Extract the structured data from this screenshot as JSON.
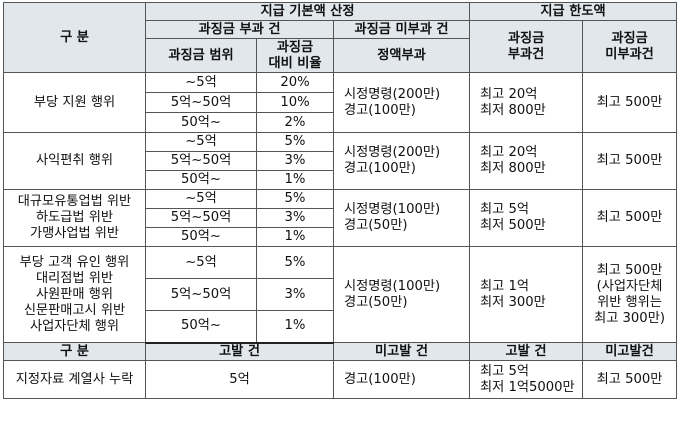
{
  "header": {
    "category": "구  분",
    "basic_amount": "지급 기본액 산정",
    "limit": "지급 한도액",
    "surcharge_applied": "과징금 부과 건",
    "surcharge_not_applied": "과징금 미부과 건",
    "surcharge_range": "과징금 범위",
    "surcharge_ratio": "과징금\n대비 비율",
    "fixed_amount": "정액부과",
    "limit_applied": "과징금\n부과건",
    "limit_not_applied": "과징금\n미부과건"
  },
  "groups": [
    {
      "category": "부당 지원 행위",
      "tiers": [
        {
          "range": "~5억",
          "ratio": "20%"
        },
        {
          "range": "5억~50억",
          "ratio": "10%"
        },
        {
          "range": "50억~",
          "ratio": "2%"
        }
      ],
      "fixed": "시정명령(200만)\n경고(100만)",
      "limit_applied": "최고 20억\n최저 800만",
      "limit_not_applied": "최고 500만"
    },
    {
      "category": "사익편취 행위",
      "tiers": [
        {
          "range": "~5억",
          "ratio": "5%"
        },
        {
          "range": "5억~50억",
          "ratio": "3%"
        },
        {
          "range": "50억~",
          "ratio": "1%"
        }
      ],
      "fixed": "시정명령(200만)\n경고(100만)",
      "limit_applied": "최고 20억\n최저 800만",
      "limit_not_applied": "최고 500만"
    },
    {
      "category": "대규모유통업법 위반\n하도급법 위반\n가맹사업법 위반",
      "tiers": [
        {
          "range": "~5억",
          "ratio": "5%"
        },
        {
          "range": "5억~50억",
          "ratio": "3%"
        },
        {
          "range": "50억~",
          "ratio": "1%"
        }
      ],
      "fixed": "시정명령(100만)\n경고(50만)",
      "limit_applied": "최고 5억\n최저 500만",
      "limit_not_applied": "최고 500만"
    },
    {
      "category": "부당 고객 유인 행위\n대리점법 위반\n사원판매 행위\n신문판매고시 위반\n사업자단체 행위",
      "tiers": [
        {
          "range": "~5억",
          "ratio": "5%"
        },
        {
          "range": "5억~50억",
          "ratio": "3%"
        },
        {
          "range": "50억~",
          "ratio": "1%"
        }
      ],
      "fixed": "시정명령(100만)\n경고(50만)",
      "limit_applied": "최고 1억\n최저 300만",
      "limit_not_applied": "최고 500만\n(사업자단체\n위반 행위는\n최고 300만)"
    }
  ],
  "footer_header": {
    "category": "구  분",
    "reported": "고발 건",
    "not_reported": "미고발 건",
    "limit_reported": "고발 건",
    "limit_not_reported": "미고발건"
  },
  "footer_row": {
    "category": "지정자료 계열사 누락",
    "reported": "5억",
    "not_reported": "경고(100만)",
    "limit_reported": "최고 5억\n최저 1억5000만",
    "limit_not_reported": "최고 500만"
  }
}
